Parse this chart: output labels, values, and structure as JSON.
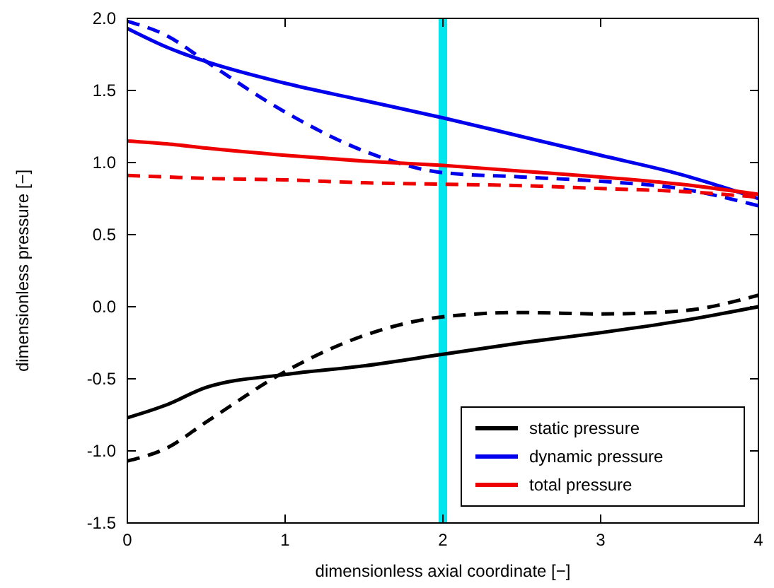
{
  "chart_data": {
    "type": "line",
    "xlabel": "dimensionless axial coordinate [−]",
    "ylabel": "dimensionless pressure [−]",
    "xlim": [
      0,
      4
    ],
    "ylim": [
      -1.5,
      2
    ],
    "xticks": [
      0,
      1,
      2,
      3,
      4
    ],
    "yticks": [
      {
        "value": -1.5,
        "label": "-1.5"
      },
      {
        "value": -1,
        "label": "-1.0"
      },
      {
        "value": -0.5,
        "label": "-0.5"
      },
      {
        "value": 0,
        "label": "0.0"
      },
      {
        "value": 0.5,
        "label": "0.5"
      },
      {
        "value": 1,
        "label": "1.0"
      },
      {
        "value": 1.5,
        "label": "1.5"
      },
      {
        "value": 2,
        "label": "2.0"
      }
    ],
    "x": [
      0,
      0.25,
      0.5,
      1,
      1.5,
      2,
      2.5,
      3,
      3.5,
      4
    ],
    "series": [
      {
        "name": "static pressure",
        "color": "#000000",
        "line_style": "solid",
        "values": [
          -0.77,
          -0.68,
          -0.56,
          -0.47,
          -0.41,
          -0.33,
          -0.25,
          -0.18,
          -0.1,
          0.0
        ]
      },
      {
        "color": "#000000",
        "line_style": "dashed",
        "values": [
          -1.07,
          -0.98,
          -0.8,
          -0.45,
          -0.2,
          -0.07,
          -0.04,
          -0.05,
          -0.03,
          0.08
        ]
      },
      {
        "name": "dynamic pressure",
        "color": "#0000ee",
        "line_style": "solid",
        "values": [
          1.93,
          1.8,
          1.7,
          1.55,
          1.43,
          1.31,
          1.18,
          1.05,
          0.92,
          0.75
        ]
      },
      {
        "color": "#0000ee",
        "line_style": "dashed",
        "values": [
          1.98,
          1.88,
          1.7,
          1.35,
          1.08,
          0.93,
          0.9,
          0.87,
          0.82,
          0.7
        ]
      },
      {
        "name": "total pressure",
        "color": "#ee0000",
        "line_style": "solid",
        "values": [
          1.15,
          1.13,
          1.1,
          1.05,
          1.01,
          0.98,
          0.94,
          0.9,
          0.85,
          0.78
        ]
      },
      {
        "color": "#ee0000",
        "line_style": "dashed",
        "values": [
          0.91,
          0.9,
          0.89,
          0.88,
          0.86,
          0.85,
          0.84,
          0.82,
          0.8,
          0.76
        ]
      }
    ],
    "ref_lines": [
      {
        "axis": "x",
        "value": 2,
        "color": "#00e5ee"
      }
    ],
    "legend": "bottom right",
    "grid": false
  }
}
